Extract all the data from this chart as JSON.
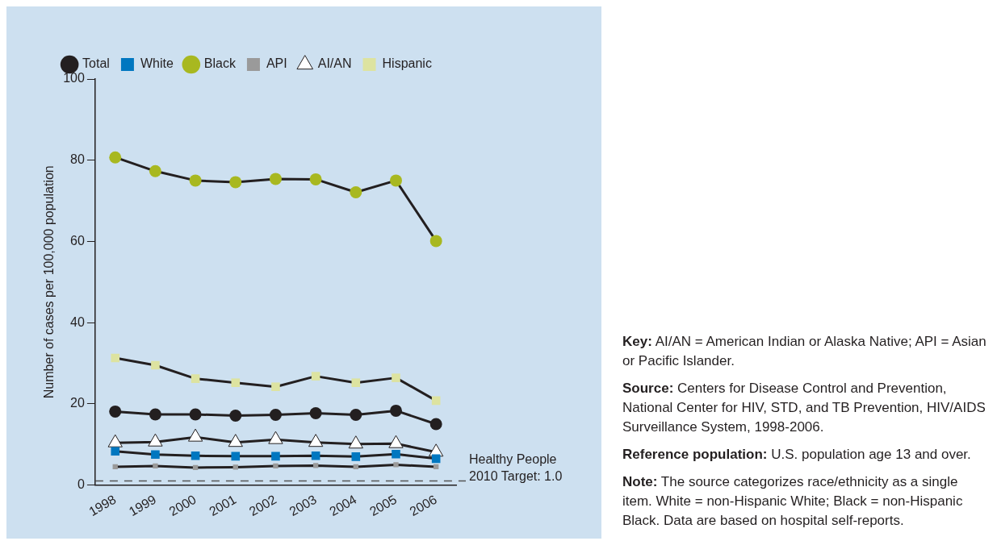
{
  "chart_data": {
    "type": "line",
    "ylabel": "Number of cases per 100,000 population",
    "categories": [
      "1998",
      "1999",
      "2000",
      "2001",
      "2002",
      "2003",
      "2004",
      "2005",
      "2006"
    ],
    "series": [
      {
        "name": "Total",
        "color": "#231f20",
        "marker": "circle",
        "values": [
          18.1,
          17.4,
          17.4,
          17.1,
          17.3,
          17.7,
          17.3,
          18.3,
          15.0
        ]
      },
      {
        "name": "White",
        "color": "#0077c0",
        "marker": "square",
        "values": [
          8.3,
          7.5,
          7.2,
          7.1,
          7.1,
          7.2,
          7.0,
          7.6,
          6.5
        ]
      },
      {
        "name": "Black",
        "color": "#a8b820",
        "marker": "circle",
        "values": [
          80.7,
          77.3,
          75.0,
          74.6,
          75.4,
          75.3,
          72.1,
          75.0,
          60.1
        ]
      },
      {
        "name": "API",
        "color": "#9a9a9a",
        "marker": "square",
        "values": [
          4.5,
          4.7,
          4.3,
          4.4,
          4.7,
          4.8,
          4.5,
          5.0,
          4.5
        ]
      },
      {
        "name": "AI/AN",
        "color": "#ffffff",
        "marker": "triangle",
        "values": [
          10.4,
          10.6,
          11.8,
          10.5,
          11.2,
          10.5,
          10.1,
          10.2,
          8.1
        ]
      },
      {
        "name": "Hispanic",
        "color": "#dde3a0",
        "marker": "square",
        "values": [
          31.3,
          29.5,
          26.2,
          25.2,
          24.2,
          26.8,
          25.2,
          26.4,
          20.8
        ]
      }
    ],
    "ylim": [
      0,
      100
    ],
    "yticks": [
      0,
      20,
      40,
      60,
      80,
      100
    ],
    "grid": false,
    "legend": "top",
    "line_style": "solid",
    "ref_lines": [
      {
        "axis": "y",
        "value": 1.0,
        "label": "Healthy People 2010 Target: 1.0",
        "color": "#555555",
        "line_style": "dashed"
      }
    ],
    "annotations": [
      "Key: AI/AN = American Indian or Alaska Native; API = Asian or Pacific Islander.",
      "Source: Centers for Disease Control and Prevention, National Center for HIV, STD, and TB Prevention, HIV/AIDS Surveillance System, 1998-2006.",
      "Reference population: U.S. population age 13 and over.",
      "Note: The source categorizes race/ethnicity as a single item.  White = non-Hispanic White; Black = non-Hispanic Black. Data are based on hospital self-reports."
    ]
  }
}
